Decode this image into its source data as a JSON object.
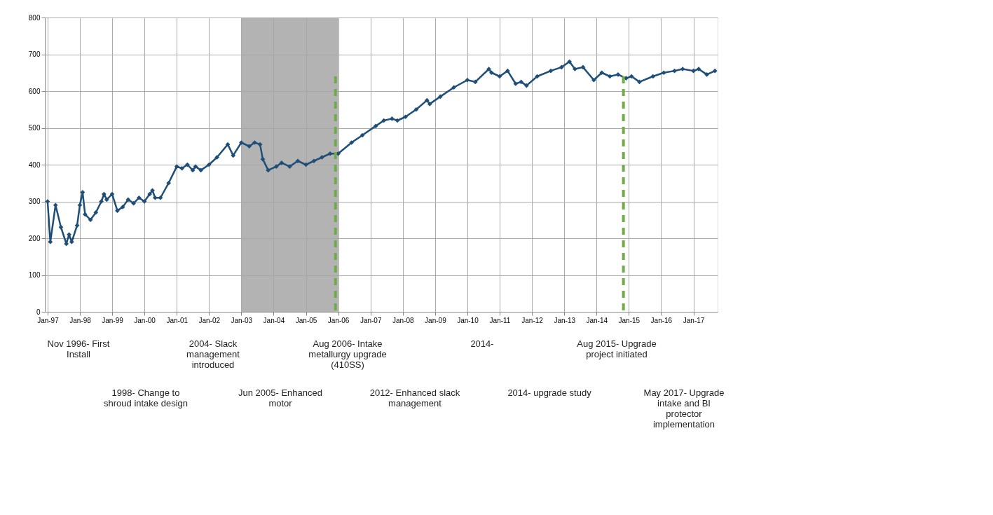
{
  "chart_data": {
    "type": "line",
    "marker": "diamond",
    "line_style": "solid",
    "grid": true,
    "x": [
      "1997-01",
      "1997-02",
      "1997-04",
      "1997-06",
      "1997-08",
      "1997-09",
      "1997-10",
      "1997-12",
      "1998-01",
      "1998-02",
      "1998-03",
      "1998-05",
      "1998-07",
      "1998-09",
      "1998-10",
      "1998-11",
      "1999-01",
      "1999-03",
      "1999-05",
      "1999-07",
      "1999-09",
      "1999-11",
      "2000-01",
      "2000-03",
      "2000-04",
      "2000-05",
      "2000-07",
      "2000-10",
      "2001-01",
      "2001-03",
      "2001-05",
      "2001-07",
      "2001-08",
      "2001-10",
      "2002-01",
      "2002-04",
      "2002-08",
      "2002-10",
      "2003-01",
      "2003-04",
      "2003-06",
      "2003-08",
      "2003-09",
      "2003-11",
      "2004-02",
      "2004-04",
      "2004-07",
      "2004-10",
      "2005-01",
      "2005-04",
      "2005-07",
      "2005-10",
      "2006-01",
      "2006-06",
      "2006-10",
      "2007-03",
      "2007-06",
      "2007-09",
      "2007-11",
      "2008-02",
      "2008-06",
      "2008-10",
      "2008-11",
      "2009-03",
      "2009-08",
      "2010-01",
      "2010-04",
      "2010-09",
      "2010-10",
      "2011-01",
      "2011-04",
      "2011-07",
      "2011-09",
      "2011-11",
      "2012-03",
      "2012-08",
      "2012-12",
      "2013-03",
      "2013-05",
      "2013-08",
      "2013-12",
      "2014-03",
      "2014-06",
      "2014-09",
      "2014-12",
      "2015-02",
      "2015-05",
      "2015-10",
      "2016-02",
      "2016-06",
      "2016-09",
      "2017-01",
      "2017-03",
      "2017-06",
      "2017-09"
    ],
    "series": [
      {
        "color": "#1f4e79",
        "values": [
          300,
          190,
          290,
          230,
          185,
          210,
          190,
          235,
          290,
          325,
          265,
          250,
          270,
          300,
          320,
          305,
          320,
          275,
          285,
          305,
          295,
          310,
          300,
          320,
          330,
          310,
          310,
          350,
          395,
          390,
          400,
          385,
          395,
          385,
          400,
          420,
          455,
          425,
          460,
          450,
          460,
          455,
          415,
          385,
          395,
          405,
          395,
          410,
          400,
          410,
          420,
          430,
          430,
          460,
          480,
          505,
          520,
          525,
          520,
          530,
          550,
          575,
          565,
          585,
          610,
          630,
          625,
          660,
          650,
          640,
          655,
          620,
          625,
          615,
          640,
          655,
          665,
          680,
          660,
          665,
          630,
          650,
          640,
          645,
          635,
          640,
          625,
          640,
          650,
          655,
          660,
          655,
          660,
          645,
          655
        ]
      }
    ],
    "xlim": [
      "1996-12",
      "2017-10"
    ],
    "xticks": [
      {
        "value": "1997-01",
        "label": "Jan-97"
      },
      {
        "value": "1998-01",
        "label": "Jan-98"
      },
      {
        "value": "1999-01",
        "label": "Jan-99"
      },
      {
        "value": "2000-01",
        "label": "Jan-00"
      },
      {
        "value": "2001-01",
        "label": "Jan-01"
      },
      {
        "value": "2002-01",
        "label": "Jan-02"
      },
      {
        "value": "2003-01",
        "label": "Jan-03"
      },
      {
        "value": "2004-01",
        "label": "Jan-04"
      },
      {
        "value": "2005-01",
        "label": "Jan-05"
      },
      {
        "value": "2006-01",
        "label": "Jan-06"
      },
      {
        "value": "2007-01",
        "label": "Jan-07"
      },
      {
        "value": "2008-01",
        "label": "Jan-08"
      },
      {
        "value": "2009-01",
        "label": "Jan-09"
      },
      {
        "value": "2010-01",
        "label": "Jan-10"
      },
      {
        "value": "2011-01",
        "label": "Jan-11"
      },
      {
        "value": "2012-01",
        "label": "Jan-12"
      },
      {
        "value": "2013-01",
        "label": "Jan-13"
      },
      {
        "value": "2014-01",
        "label": "Jan-14"
      },
      {
        "value": "2015-01",
        "label": "Jan-15"
      },
      {
        "value": "2016-01",
        "label": "Jan-16"
      },
      {
        "value": "2017-01",
        "label": "Jan-17"
      }
    ],
    "ylim": [
      0,
      800
    ],
    "yticks": [
      0,
      100,
      200,
      300,
      400,
      500,
      600,
      700,
      800
    ],
    "bands": [
      {
        "axis": "x",
        "from": "2003-01",
        "to": "2006-01",
        "color": "#a6a6a6"
      }
    ],
    "ref_lines": [
      {
        "axis": "x",
        "value": "2005-12",
        "color": "#70ad47",
        "line_style": "dashed"
      },
      {
        "axis": "x",
        "value": "2014-11",
        "color": "#70ad47",
        "line_style": "dashed"
      }
    ],
    "annotations": [
      "Nov 1996- First Install",
      "1998- Change to shroud intake design",
      "2004- Slack management introduced",
      "Jun 2005- Enhanced motor",
      "Aug 2006- Intake metallurgy upgrade (410SS)",
      "2012- Enhanced slack management",
      "2014-",
      "2014- upgrade study",
      "Aug 2015- Upgrade project initiated",
      "May 2017- Upgrade intake and BI protector implementation"
    ]
  }
}
